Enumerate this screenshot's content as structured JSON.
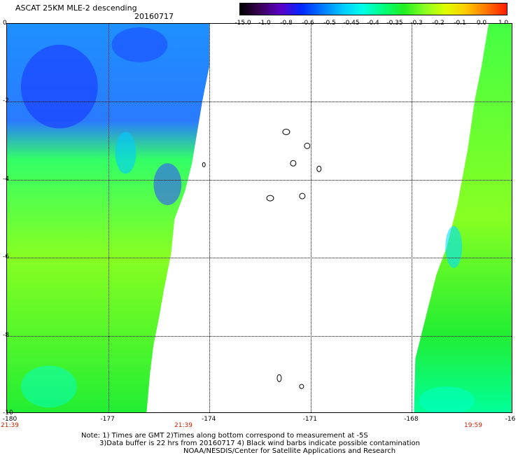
{
  "header": {
    "title": "ASCAT 25KM MLE-2 descending",
    "date": "20160717"
  },
  "colorbar": {
    "labels": [
      "-15.0",
      "-1.0",
      "-0.8",
      "-0.6",
      "-0.5",
      "-0.45",
      "-0.4",
      "-0.35",
      "-0.3",
      "-0.2",
      "-0.1",
      "0.0",
      "1.0"
    ],
    "colors": [
      "#000000",
      "#3c005a",
      "#5a00c8",
      "#0028ff",
      "#0078ff",
      "#00c8ff",
      "#00ffe6",
      "#00ff7a",
      "#22ee22",
      "#88ff22",
      "#ddff00",
      "#ffcc00",
      "#ff7700",
      "#ff1a00"
    ]
  },
  "axes": {
    "x_ticks": [
      "-180",
      "-177",
      "-174",
      "-171",
      "-168",
      "-16"
    ],
    "y_ticks": [
      "0",
      "-2",
      "-4",
      "-6",
      "-8",
      "-10"
    ],
    "lon_range": [
      -180,
      -165
    ],
    "lat_range": [
      0,
      -10
    ]
  },
  "times": [
    "21:39",
    "21:39",
    "19:59"
  ],
  "notes": {
    "line1": "Note: 1) Times are GMT 2)Times along bottom correspond to measurement at -5S",
    "line2": "3)Data buffer is 22 hrs from 20160717 4) Black wind barbs indicate possible contamination",
    "line3": "NOAA/NESDIS/Center for Satellite Applications and Research"
  }
}
